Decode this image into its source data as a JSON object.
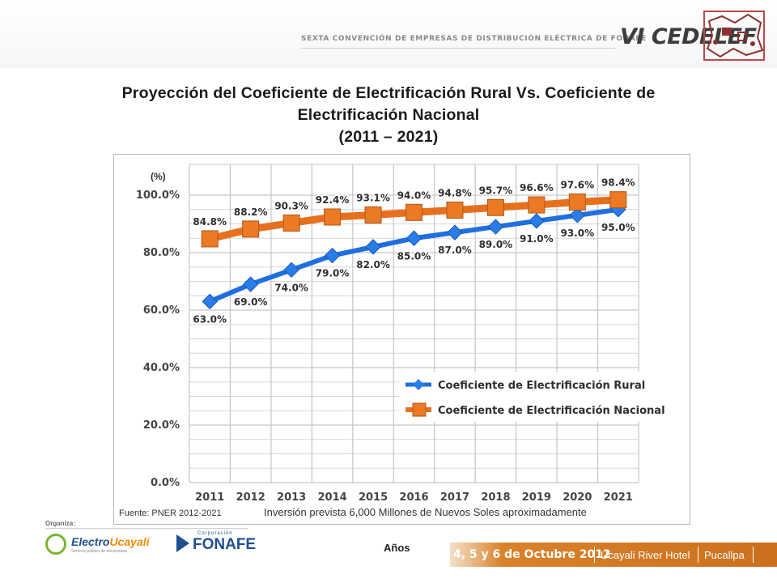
{
  "header": {
    "event_line": "SEXTA CONVENCIÓN DE EMPRESAS DE DISTRIBUCIÓN ELÉCTRICA DE FONAFE",
    "brand": "VI CEDELEF"
  },
  "title": {
    "line1": "Proyección del Coeficiente de Electrificación Rural Vs. Coeficiente de",
    "line2": "Electrificación Nacional",
    "line3": "(2011 – 2021)"
  },
  "chart_data": {
    "type": "line",
    "title": "",
    "xlabel": "Años",
    "ylabel": "(%)",
    "ylim": [
      0,
      100
    ],
    "yticks": [
      "0.0%",
      "20.0%",
      "40.0%",
      "60.0%",
      "80.0%",
      "100.0%"
    ],
    "categories": [
      "2011",
      "2012",
      "2013",
      "2014",
      "2015",
      "2016",
      "2017",
      "2018",
      "2019",
      "2020",
      "2021"
    ],
    "series": [
      {
        "name": "Coeficiente de Electrificación Rural",
        "color": "#1f6fe0",
        "marker": "diamond",
        "values": [
          63.0,
          69.0,
          74.0,
          79.0,
          82.0,
          85.0,
          87.0,
          89.0,
          91.0,
          93.0,
          95.0
        ],
        "labels": [
          "63.0%",
          "69.0%",
          "74.0%",
          "79.0%",
          "82.0%",
          "85.0%",
          "87.0%",
          "89.0%",
          "91.0%",
          "93.0%",
          "95.0%"
        ]
      },
      {
        "name": "Coeficiente de Electrificación Nacional",
        "color": "#e7701e",
        "marker": "square",
        "values": [
          84.8,
          88.2,
          90.3,
          92.4,
          93.1,
          94.0,
          94.8,
          95.7,
          96.6,
          97.6,
          98.4
        ],
        "labels": [
          "84.8%",
          "88.2%",
          "90.3%",
          "92.4%",
          "93.1%",
          "94.0%",
          "94.8%",
          "95.7%",
          "96.6%",
          "97.6%",
          "98.4%"
        ]
      }
    ],
    "grid": true,
    "legend_position": "bottom-right"
  },
  "notes": {
    "source": "Fuente: PNER 2012-2021",
    "investment": "Inversión prevista 6,000 Millones de  Nuevos Soles aproximadamente"
  },
  "organizers": {
    "label": "Organiza:",
    "electro": "Electro",
    "ucayali": "Ucayali",
    "electro_sub": "Servicio público de electricidad",
    "fonafe_small": "Corporación",
    "fonafe": "FONAFE"
  },
  "footer": {
    "date": "4, 5 y 6 de Octubre 2012",
    "hotel": "Ucayali River Hotel",
    "city": "Pucallpa"
  }
}
